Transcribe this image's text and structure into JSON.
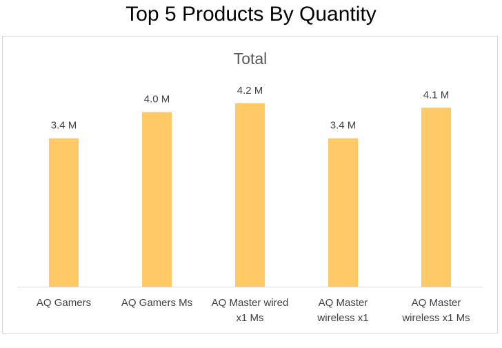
{
  "page": {
    "title": "Top 5 Products By Quantity"
  },
  "colors": {
    "bar": "#FFCA66",
    "axis": "#D9D9D9",
    "text": "#404040",
    "title": "#595959"
  },
  "chart_data": {
    "type": "bar",
    "title": "Total",
    "xlabel": "",
    "ylabel": "",
    "ylim": [
      0,
      4.2
    ],
    "gridlines": false,
    "legend": "none",
    "categories": [
      [
        "AQ Gamers"
      ],
      [
        "AQ Gamers Ms"
      ],
      [
        "AQ Master wired",
        "x1 Ms"
      ],
      [
        "AQ Master",
        "wireless x1"
      ],
      [
        "AQ Master",
        "wireless x1 Ms"
      ]
    ],
    "values": [
      3.4,
      4.0,
      4.2,
      3.4,
      4.1
    ],
    "data_labels": [
      "3.4 M",
      "4.0 M",
      "4.2 M",
      "3.4 M",
      "4.1 M"
    ]
  }
}
